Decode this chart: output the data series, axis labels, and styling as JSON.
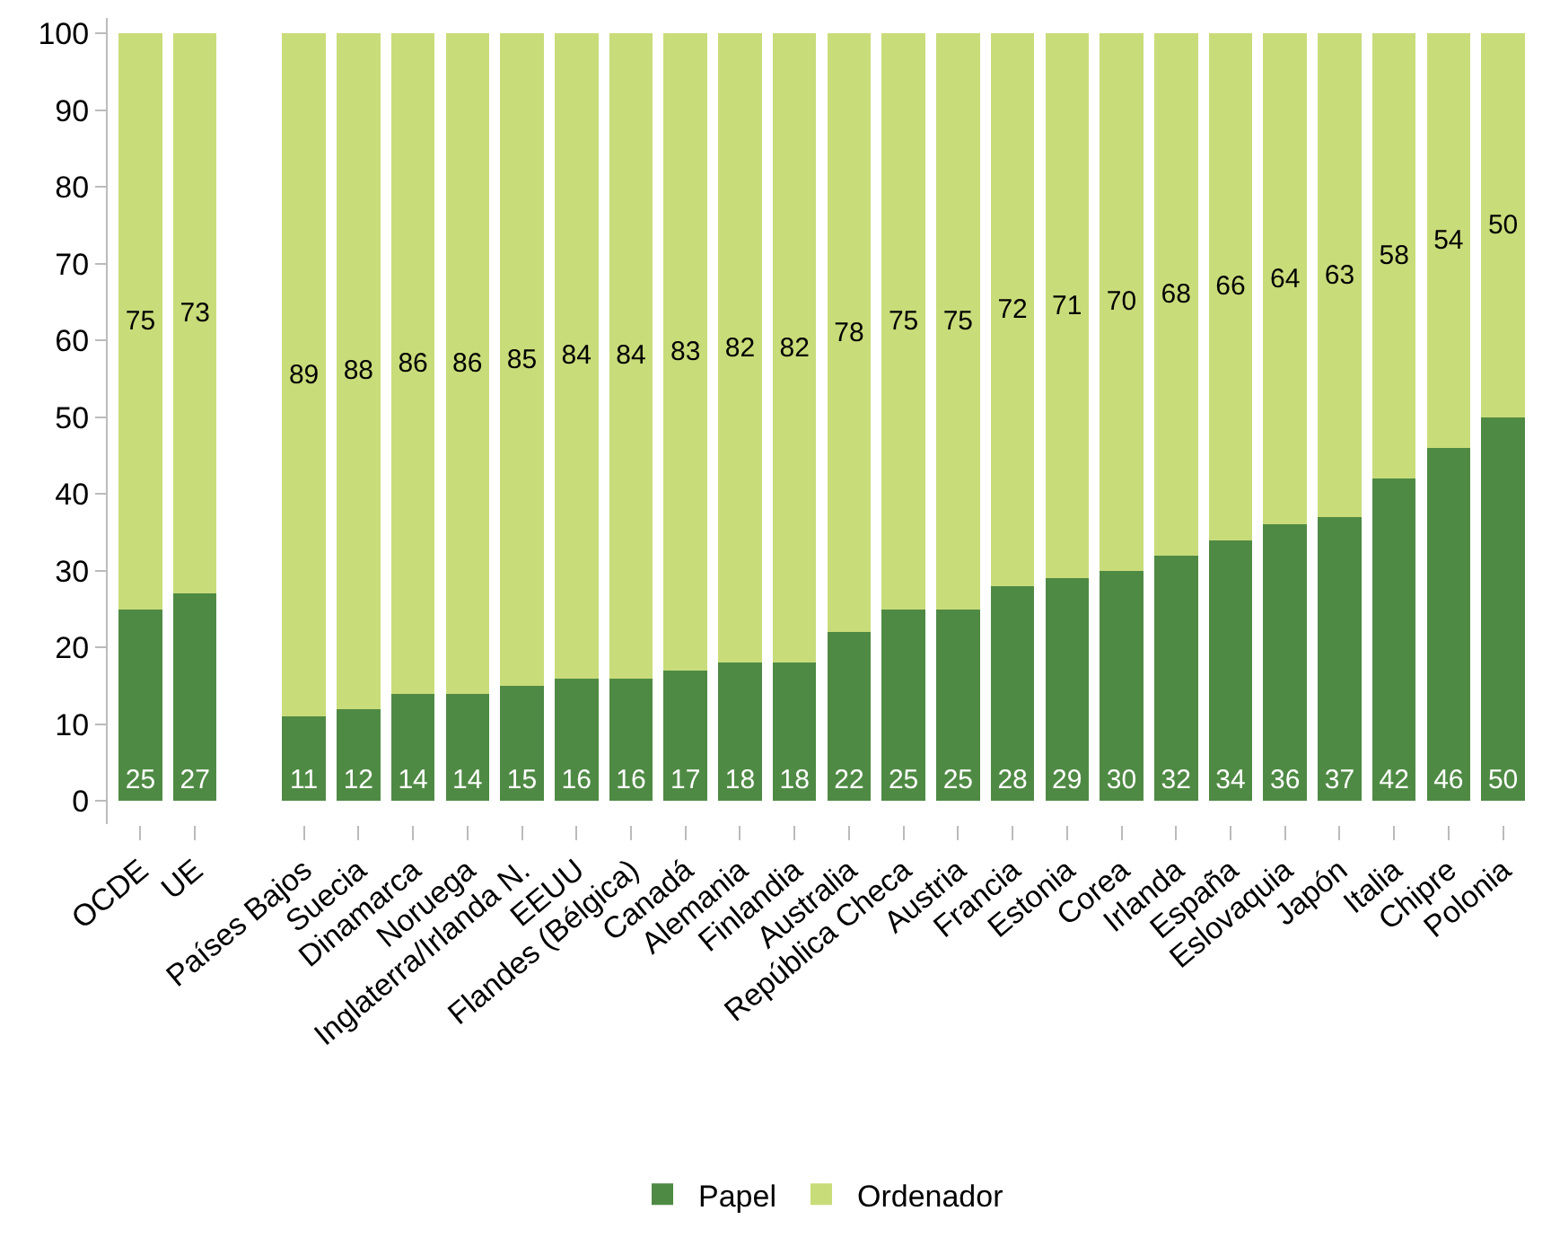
{
  "chart_data": {
    "type": "bar",
    "stacked": true,
    "data_labels": true,
    "legend": "bottom",
    "grid": false,
    "categories": [
      "OCDE",
      "UE",
      null,
      "Países Bajos",
      "Suecia",
      "Dinamarca",
      "Noruega",
      "Inglaterra/Irlanda N.",
      "EEUU",
      "Flandes (Bélgica)",
      "Canadá",
      "Alemania",
      "Finlandia",
      "Australia",
      "República Checa",
      "Austria",
      "Francia",
      "Estonia",
      "Corea",
      "Irlanda",
      "España",
      "Eslovaquia",
      "Japón",
      "Italia",
      "Chipre",
      "Polonia"
    ],
    "series": [
      {
        "name": "Papel",
        "color": "#4f8a44",
        "values": [
          25,
          27,
          null,
          11,
          12,
          14,
          14,
          15,
          16,
          16,
          17,
          18,
          18,
          22,
          25,
          25,
          28,
          29,
          30,
          32,
          34,
          36,
          37,
          42,
          46,
          50
        ]
      },
      {
        "name": "Ordenador",
        "color": "#c9dc7a",
        "values": [
          75,
          73,
          null,
          89,
          88,
          86,
          86,
          85,
          84,
          84,
          83,
          82,
          82,
          78,
          75,
          75,
          72,
          71,
          70,
          68,
          66,
          64,
          63,
          58,
          54,
          50
        ]
      }
    ],
    "ylim": [
      -3,
      102
    ],
    "yticks": [
      0,
      10,
      20,
      30,
      40,
      50,
      60,
      70,
      80,
      90,
      100
    ]
  }
}
